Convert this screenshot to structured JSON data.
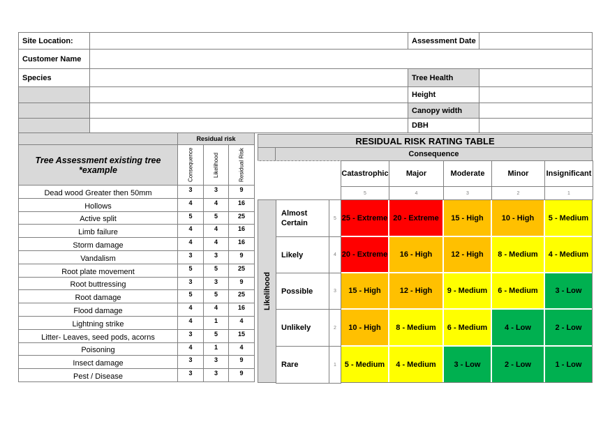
{
  "form": {
    "site_location": "Site Location:",
    "assessment_date": "Assessment Date",
    "customer_name": "Customer Name",
    "species": "Species",
    "tree_health": "Tree Health",
    "height": "Height",
    "canopy_width": "Canopy width",
    "dbh": "DBH"
  },
  "assessment": {
    "residual_risk_header": "Residual risk",
    "title_line1": "Tree Assessment existing tree",
    "title_line2": "*example",
    "col_consequence": "Consequence",
    "col_likelihood": "Likelihood",
    "col_residual": "Residual Risk",
    "rows": [
      {
        "name": "Dead wood Greater then 50mm",
        "c": "3",
        "l": "3",
        "r": "9"
      },
      {
        "name": "Hollows",
        "c": "4",
        "l": "4",
        "r": "16"
      },
      {
        "name": "Active split",
        "c": "5",
        "l": "5",
        "r": "25"
      },
      {
        "name": "Limb failure",
        "c": "4",
        "l": "4",
        "r": "16"
      },
      {
        "name": "Storm damage",
        "c": "4",
        "l": "4",
        "r": "16"
      },
      {
        "name": "Vandalism",
        "c": "3",
        "l": "3",
        "r": "9"
      },
      {
        "name": "Root plate movement",
        "c": "5",
        "l": "5",
        "r": "25"
      },
      {
        "name": "Root buttressing",
        "c": "3",
        "l": "3",
        "r": "9"
      },
      {
        "name": "Root damage",
        "c": "5",
        "l": "5",
        "r": "25"
      },
      {
        "name": "Flood damage",
        "c": "4",
        "l": "4",
        "r": "16"
      },
      {
        "name": "Lightning strike",
        "c": "4",
        "l": "1",
        "r": "4"
      },
      {
        "name": "Litter- Leaves, seed pods, acorns",
        "c": "3",
        "l": "5",
        "r": "15"
      },
      {
        "name": "Poisoning",
        "c": "4",
        "l": "1",
        "r": "4"
      },
      {
        "name": "Insect damage",
        "c": "3",
        "l": "3",
        "r": "9"
      },
      {
        "name": "Pest / Disease",
        "c": "3",
        "l": "3",
        "r": "9"
      }
    ]
  },
  "matrix": {
    "title": "RESIDUAL RISK RATING TABLE",
    "consequence_label": "Consequence",
    "likelihood_label": "Likelihood",
    "consequences": [
      {
        "name": "Catastrophic",
        "score": "5"
      },
      {
        "name": "Major",
        "score": "4"
      },
      {
        "name": "Moderate",
        "score": "3"
      },
      {
        "name": "Minor",
        "score": "2"
      },
      {
        "name": "Insignificant",
        "score": "1"
      }
    ],
    "likelihoods": [
      {
        "name": "Almost Certain",
        "score": "5",
        "cells": [
          "25 - Extreme",
          "20 - Extreme",
          "15 - High",
          "10 - High",
          "5 - Medium"
        ]
      },
      {
        "name": "Likely",
        "score": "4",
        "cells": [
          "20 - Extreme",
          "16 - High",
          "12 - High",
          "8 - Medium",
          "4 - Medium"
        ]
      },
      {
        "name": "Possible",
        "score": "3",
        "cells": [
          "15 - High",
          "12 - High",
          "9 - Medium",
          "6 - Medium",
          "3 - Low"
        ]
      },
      {
        "name": "Unlikely",
        "score": "2",
        "cells": [
          "10 - High",
          "8 - Medium",
          "6 - Medium",
          "4 - Low",
          "2 - Low"
        ]
      },
      {
        "name": "Rare",
        "score": "1",
        "cells": [
          "5 - Medium",
          "4 - Medium",
          "3 - Low",
          "2 - Low",
          "1 - Low"
        ]
      }
    ],
    "colors": {
      "extreme": "#ff0000",
      "high": "#ffc000",
      "medium": "#ffff00",
      "low": "#00b050"
    }
  }
}
